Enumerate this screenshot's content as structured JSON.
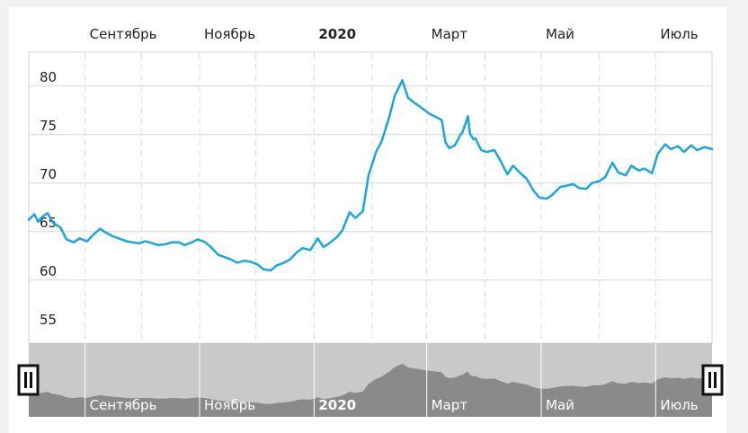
{
  "chart_data": {
    "type": "line",
    "title": "",
    "xlabel": "",
    "ylabel": "",
    "month_labels": [
      {
        "text": "Сентябрь",
        "bold": false
      },
      {
        "text": "Ноябрь",
        "bold": false
      },
      {
        "text": "2020",
        "bold": true
      },
      {
        "text": "Март",
        "bold": false
      },
      {
        "text": "Май",
        "bold": false
      },
      {
        "text": "Июль",
        "bold": false
      }
    ],
    "y_ticks": [
      55,
      60,
      65,
      70,
      75,
      80
    ],
    "ylim": [
      53.5,
      83.5
    ],
    "x_range": [
      "2019-08-02",
      "2020-07-31"
    ],
    "grid": true,
    "series": [
      {
        "color": "#1aa8dc",
        "x": [
          "2019-08-02",
          "2019-08-05",
          "2019-08-07",
          "2019-08-09",
          "2019-08-12",
          "2019-08-15",
          "2019-08-19",
          "2019-08-22",
          "2019-08-26",
          "2019-08-29",
          "2019-09-02",
          "2019-09-05",
          "2019-09-09",
          "2019-09-12",
          "2019-09-16",
          "2019-09-19",
          "2019-09-23",
          "2019-09-26",
          "2019-09-30",
          "2019-10-03",
          "2019-10-07",
          "2019-10-10",
          "2019-10-14",
          "2019-10-17",
          "2019-10-21",
          "2019-10-24",
          "2019-10-28",
          "2019-10-31",
          "2019-11-04",
          "2019-11-07",
          "2019-11-11",
          "2019-11-14",
          "2019-11-18",
          "2019-11-21",
          "2019-11-25",
          "2019-11-28",
          "2019-12-02",
          "2019-12-05",
          "2019-12-09",
          "2019-12-12",
          "2019-12-16",
          "2019-12-19",
          "2019-12-23",
          "2019-12-26",
          "2019-12-30",
          "2020-01-03",
          "2020-01-06",
          "2020-01-09",
          "2020-01-13",
          "2020-01-16",
          "2020-01-20",
          "2020-01-23",
          "2020-01-27",
          "2020-01-30",
          "2020-02-03",
          "2020-02-06",
          "2020-02-10",
          "2020-02-13",
          "2020-02-17",
          "2020-02-20",
          "2020-02-24",
          "2020-02-27",
          "2020-03-02",
          "2020-03-05",
          "2020-03-09",
          "2020-03-11",
          "2020-03-13",
          "2020-03-16",
          "2020-03-18",
          "2020-03-19",
          "2020-03-20",
          "2020-03-23",
          "2020-03-24",
          "2020-03-26",
          "2020-03-27",
          "2020-03-30",
          "2020-04-02",
          "2020-04-06",
          "2020-04-09",
          "2020-04-13",
          "2020-04-16",
          "2020-04-20",
          "2020-04-23",
          "2020-04-27",
          "2020-04-30",
          "2020-05-04",
          "2020-05-07",
          "2020-05-11",
          "2020-05-14",
          "2020-05-18",
          "2020-05-21",
          "2020-05-25",
          "2020-05-28",
          "2020-06-01",
          "2020-06-04",
          "2020-06-08",
          "2020-06-11",
          "2020-06-15",
          "2020-06-18",
          "2020-06-22",
          "2020-06-25",
          "2020-06-29",
          "2020-07-02",
          "2020-07-06",
          "2020-07-09",
          "2020-07-13",
          "2020-07-16",
          "2020-07-20",
          "2020-07-23",
          "2020-07-27",
          "2020-07-31"
        ],
        "values": [
          66.2,
          66.8,
          66.0,
          66.5,
          66.9,
          65.9,
          65.4,
          64.2,
          63.9,
          64.3,
          64.0,
          64.6,
          65.3,
          64.9,
          64.5,
          64.3,
          64.0,
          63.9,
          63.8,
          64.0,
          63.8,
          63.6,
          63.7,
          63.9,
          63.9,
          63.6,
          63.9,
          64.2,
          63.9,
          63.4,
          62.6,
          62.4,
          62.1,
          61.8,
          62.0,
          61.9,
          61.6,
          61.1,
          61.0,
          61.5,
          61.8,
          62.1,
          62.9,
          63.3,
          63.1,
          64.3,
          63.4,
          63.8,
          64.4,
          65.1,
          67.0,
          66.4,
          67.1,
          70.8,
          73.2,
          74.3,
          76.8,
          79.0,
          80.6,
          78.8,
          78.2,
          77.8,
          77.2,
          76.9,
          76.5,
          74.2,
          73.6,
          73.9,
          74.6,
          75.0,
          75.2,
          76.9,
          75.1,
          74.5,
          74.6,
          73.4,
          73.2,
          73.4,
          72.4,
          70.9,
          71.8,
          71.0,
          70.5,
          69.2,
          68.5,
          68.4,
          68.8,
          69.6,
          69.7,
          69.9,
          69.5,
          69.4,
          70.0,
          70.2,
          70.6,
          72.1,
          71.1,
          70.8,
          71.8,
          71.3,
          71.5,
          71.0,
          73.0,
          74.0,
          73.5,
          73.8,
          73.2,
          73.9,
          73.4,
          73.7,
          73.5
        ]
      }
    ]
  }
}
